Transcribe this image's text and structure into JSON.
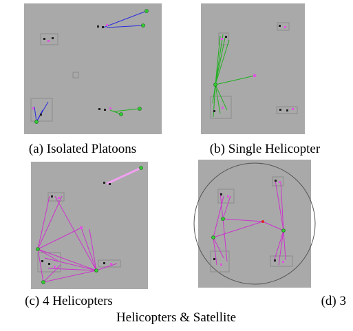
{
  "figure": {
    "captions": [
      "(a) Isolated Platoons",
      "(b) Single Helicopter",
      "(c) 4 Helicopters",
      "(d) 3",
      "Helicopters & Satellite"
    ]
  }
}
